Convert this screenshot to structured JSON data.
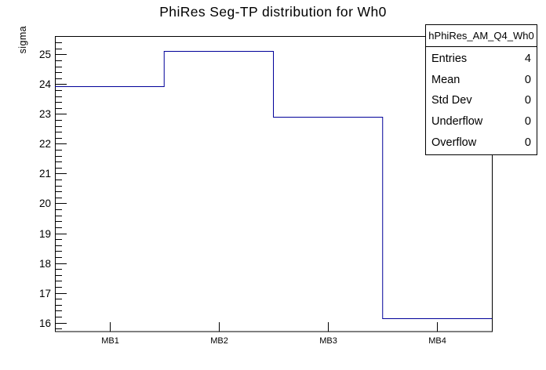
{
  "chart_data": {
    "type": "bar",
    "subtype": "root-step-histogram",
    "title": "PhiRes Seg-TP distribution for Wh0",
    "xlabel": "",
    "ylabel": "sigma",
    "categories": [
      "MB1",
      "MB2",
      "MB3",
      "MB4"
    ],
    "values": [
      23.92,
      25.12,
      22.9,
      16.14
    ],
    "ylim": [
      15.7,
      25.6
    ],
    "y_major_ticks": [
      16,
      17,
      18,
      19,
      20,
      21,
      22,
      23,
      24,
      25
    ],
    "y_minor_step": 0.2,
    "grid": false,
    "legend_position": "none",
    "line_color": "#000099",
    "axis_color": "#000000",
    "background_color": "#ffffff"
  },
  "stats_box": {
    "title": "hPhiRes_AM_Q4_Wh0",
    "rows": [
      {
        "label": "Entries",
        "value": "4"
      },
      {
        "label": "Mean",
        "value": "0"
      },
      {
        "label": "Std Dev",
        "value": "0"
      },
      {
        "label": "Underflow",
        "value": "0"
      },
      {
        "label": "Overflow",
        "value": "0"
      }
    ]
  }
}
